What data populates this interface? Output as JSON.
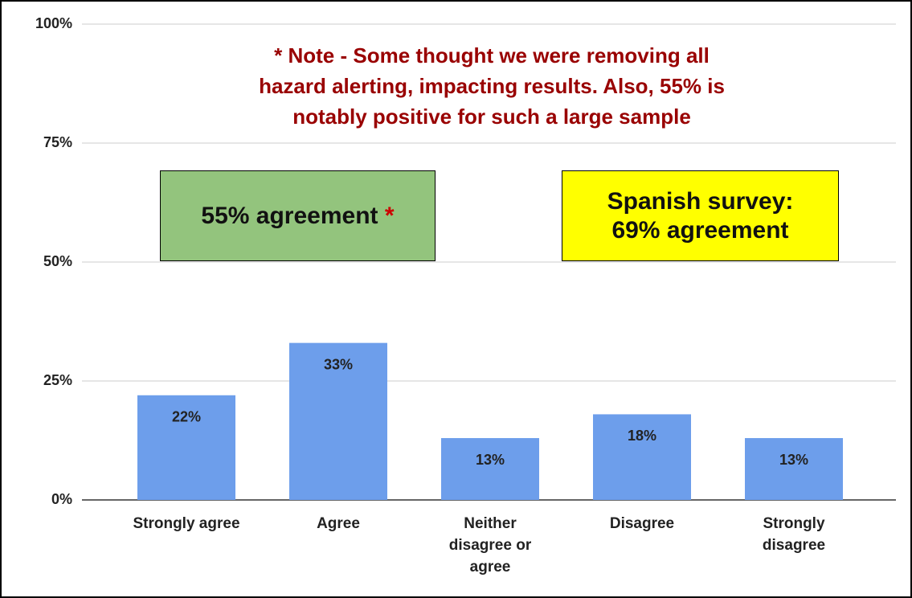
{
  "chart_data": {
    "type": "bar",
    "categories": [
      "Strongly agree",
      "Agree",
      "Neither\ndisagree or\nagree",
      "Disagree",
      "Strongly\ndisagree"
    ],
    "values": [
      22,
      33,
      13,
      18,
      13
    ],
    "value_labels": [
      "22%",
      "33%",
      "13%",
      "18%",
      "13%"
    ],
    "color": "#6d9eeb",
    "ylim": [
      0,
      100
    ],
    "yticks": [
      {
        "value": 0,
        "label": "0%"
      },
      {
        "value": 25,
        "label": "25%"
      },
      {
        "value": 50,
        "label": "50%"
      },
      {
        "value": 75,
        "label": "75%"
      },
      {
        "value": 100,
        "label": "100%"
      }
    ],
    "grid": true,
    "annotations": {
      "note": "* Note - Some thought we were removing all\nhazard alerting, impacting results.  Also, 55% is\nnotably positive for such a large sample",
      "green_box": {
        "text": "55% agreement",
        "marker": "*"
      },
      "yellow_box": {
        "text": "Spanish survey:\n69% agreement"
      }
    }
  }
}
